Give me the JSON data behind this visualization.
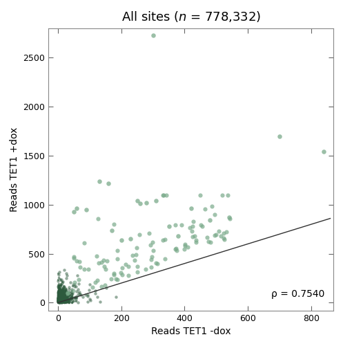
{
  "title_part1": "All sites (",
  "title_n": "n",
  "title_part2": " = 778,332)",
  "xlabel": "Reads TET1 -dox",
  "ylabel": "Reads TET1 +dox",
  "xlim": [
    -30,
    870
  ],
  "ylim": [
    -80,
    2800
  ],
  "xticks": [
    0,
    200,
    400,
    600,
    800
  ],
  "yticks": [
    0,
    500,
    1000,
    1500,
    2000,
    2500
  ],
  "point_color_light": "#7aaa8a",
  "point_color_dense": "#2d5a3d",
  "line_color": "#333333",
  "line_x0": 0,
  "line_y0": 0,
  "line_x1": 860,
  "line_y1": 860,
  "rho_text": "ρ = 0.7540",
  "title_fontsize": 13,
  "axis_fontsize": 10,
  "tick_fontsize": 9,
  "annotation_fontsize": 10,
  "background_color": "#ffffff",
  "n_dense": 800,
  "n_sparse": 100,
  "seed": 42
}
